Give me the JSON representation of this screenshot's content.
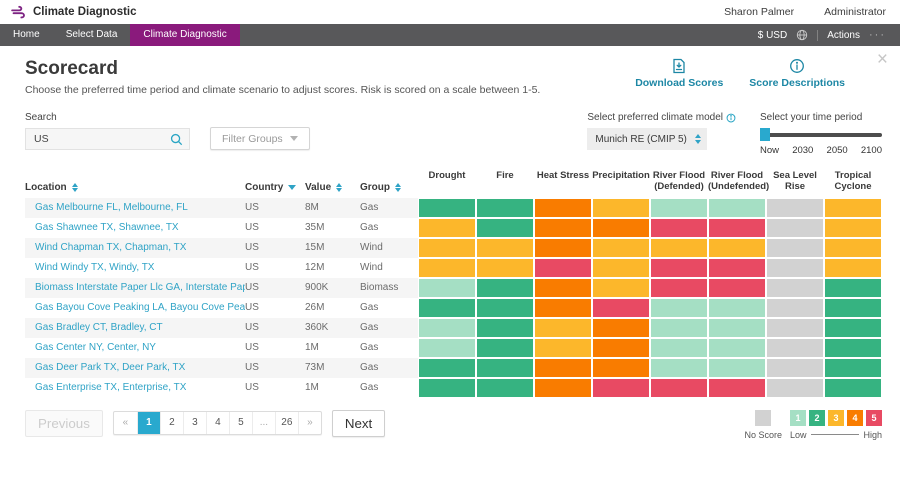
{
  "app": {
    "brand": "Climate Diagnostic",
    "user": {
      "name": "Sharon Palmer",
      "role": "Administrator"
    }
  },
  "nav": {
    "items": [
      {
        "label": "Home",
        "active": false
      },
      {
        "label": "Select Data",
        "active": false
      },
      {
        "label": "Climate Diagnostic",
        "active": true
      }
    ],
    "currency": "$ USD",
    "actions": "Actions",
    "more": "···"
  },
  "page": {
    "title": "Scorecard",
    "subtitle": "Choose the preferred time period and climate scenario to adjust scores. Risk is scored on a scale between 1-5.",
    "links": {
      "download": "Download Scores",
      "descriptions": "Score Descriptions"
    }
  },
  "filters": {
    "search": {
      "label": "Search",
      "value": "US"
    },
    "filter_groups": "Filter Groups",
    "climate_model": {
      "label": "Select preferred climate model",
      "value": "Munich RE (CMIP 5)"
    },
    "time_period": {
      "label": "Select your time period",
      "ticks": [
        "Now",
        "2030",
        "2050",
        "2100"
      ],
      "selected": "Now"
    }
  },
  "table": {
    "columns": [
      {
        "label": "Location",
        "sort": "both"
      },
      {
        "label": "Country",
        "sort": "down"
      },
      {
        "label": "Value",
        "sort": "both"
      },
      {
        "label": "Group",
        "sort": "both"
      }
    ],
    "risk_columns": [
      "Drought",
      "Fire",
      "Heat Stress",
      "Precipitation",
      "River Flood (Defended)",
      "River Flood (Undefended)",
      "Sea Level Rise",
      "Tropical Cyclone"
    ],
    "rows": [
      {
        "location": "Gas Melbourne FL, Melbourne, FL",
        "country": "US",
        "value": "8M",
        "group": "Gas",
        "scores": [
          2,
          2,
          4,
          3,
          1,
          1,
          0,
          3
        ]
      },
      {
        "location": "Gas Shawnee TX, Shawnee, TX",
        "country": "US",
        "value": "35M",
        "group": "Gas",
        "scores": [
          3,
          2,
          4,
          4,
          5,
          5,
          0,
          3
        ]
      },
      {
        "location": "Wind Chapman TX, Chapman, TX",
        "country": "US",
        "value": "15M",
        "group": "Wind",
        "scores": [
          3,
          3,
          4,
          3,
          3,
          3,
          0,
          3
        ]
      },
      {
        "location": "Wind Windy TX, Windy, TX",
        "country": "US",
        "value": "12M",
        "group": "Wind",
        "scores": [
          3,
          3,
          5,
          3,
          5,
          5,
          0,
          3
        ]
      },
      {
        "location": "Biomass Interstate Paper Llc GA, Interstate Paper Llc, GA",
        "country": "US",
        "value": "900K",
        "group": "Biomass",
        "scores": [
          1,
          2,
          4,
          3,
          5,
          5,
          0,
          2
        ]
      },
      {
        "location": "Gas Bayou Cove Peaking LA, Bayou Cove Peaking, LA",
        "country": "US",
        "value": "26M",
        "group": "Gas",
        "scores": [
          2,
          2,
          4,
          5,
          1,
          1,
          0,
          2
        ]
      },
      {
        "location": "Gas Bradley CT, Bradley, CT",
        "country": "US",
        "value": "360K",
        "group": "Gas",
        "scores": [
          1,
          2,
          3,
          4,
          1,
          1,
          0,
          2
        ]
      },
      {
        "location": "Gas Center NY, Center, NY",
        "country": "US",
        "value": "1M",
        "group": "Gas",
        "scores": [
          1,
          2,
          3,
          4,
          1,
          1,
          0,
          2
        ]
      },
      {
        "location": "Gas Deer Park TX, Deer Park, TX",
        "country": "US",
        "value": "73M",
        "group": "Gas",
        "scores": [
          2,
          2,
          4,
          4,
          1,
          1,
          0,
          2
        ]
      },
      {
        "location": "Gas Enterprise TX, Enterprise, TX",
        "country": "US",
        "value": "1M",
        "group": "Gas",
        "scores": [
          2,
          2,
          4,
          5,
          5,
          5,
          0,
          2
        ]
      }
    ]
  },
  "pagination": {
    "previous": "Previous",
    "next": "Next",
    "pages": [
      "«",
      "1",
      "2",
      "3",
      "4",
      "5",
      "...",
      "26",
      "»"
    ],
    "active_page": "1"
  },
  "legend": {
    "no_score_label": "No Score",
    "low_label": "Low",
    "high_label": "High",
    "no_score_color": "#D2D2D2",
    "items": [
      {
        "label": "1",
        "color": "#A5DFC4"
      },
      {
        "label": "2",
        "color": "#36B381"
      },
      {
        "label": "3",
        "color": "#FCB72B"
      },
      {
        "label": "4",
        "color": "#F97C00"
      },
      {
        "label": "5",
        "color": "#E84A63"
      }
    ]
  },
  "colors": {
    "accent_teal": "#1D87A5",
    "accent_cyan": "#29A9CE",
    "brand_purple": "#8A1A7C",
    "navbar_gray": "#58585A",
    "score_colors": {
      "0": "#D2D2D2",
      "1": "#A5DFC4",
      "2": "#36B381",
      "3": "#FCB72B",
      "4": "#F97C00",
      "5": "#E84A63"
    }
  },
  "icons": {
    "logo": "wind-logo-icon",
    "search": "search-icon",
    "download": "download-icon",
    "info": "info-icon",
    "globe": "globe-icon",
    "close": "close-icon"
  }
}
